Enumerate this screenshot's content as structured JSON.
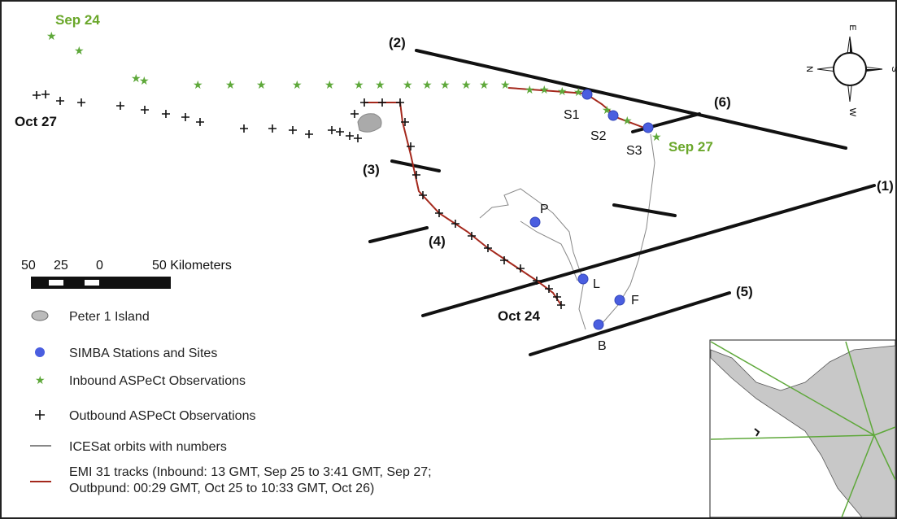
{
  "map": {
    "date_labels": [
      "Sep 24",
      "Oct 27",
      "Sep 27",
      "Oct 24"
    ],
    "orbit_labels": [
      "(1)",
      "(2)",
      "(3)",
      "(4)",
      "(5)",
      "(6)"
    ],
    "station_labels": [
      "S1",
      "S2",
      "S3",
      "P",
      "L",
      "F",
      "B"
    ],
    "compass": [
      "N",
      "E",
      "S",
      "W"
    ],
    "scale": {
      "ticks": [
        "50",
        "25",
        "0"
      ],
      "label": "50 Kilometers"
    },
    "legend": {
      "island": "Peter 1 Island",
      "stations": "SIMBA Stations and Sites",
      "inbound": "Inbound ASPeCt Observations",
      "outbound": "Outbound ASPeCt Observations",
      "orbits": "ICESat orbits with numbers",
      "tracks": [
        "EMI 31 tracks (Inbound: 13 GMT, Sep 25 to 3:41 GMT, Sep 27;",
        "Outbpund: 00:29 GMT, Oct 25 to 10:33 GMT, Oct 26)"
      ]
    }
  }
}
